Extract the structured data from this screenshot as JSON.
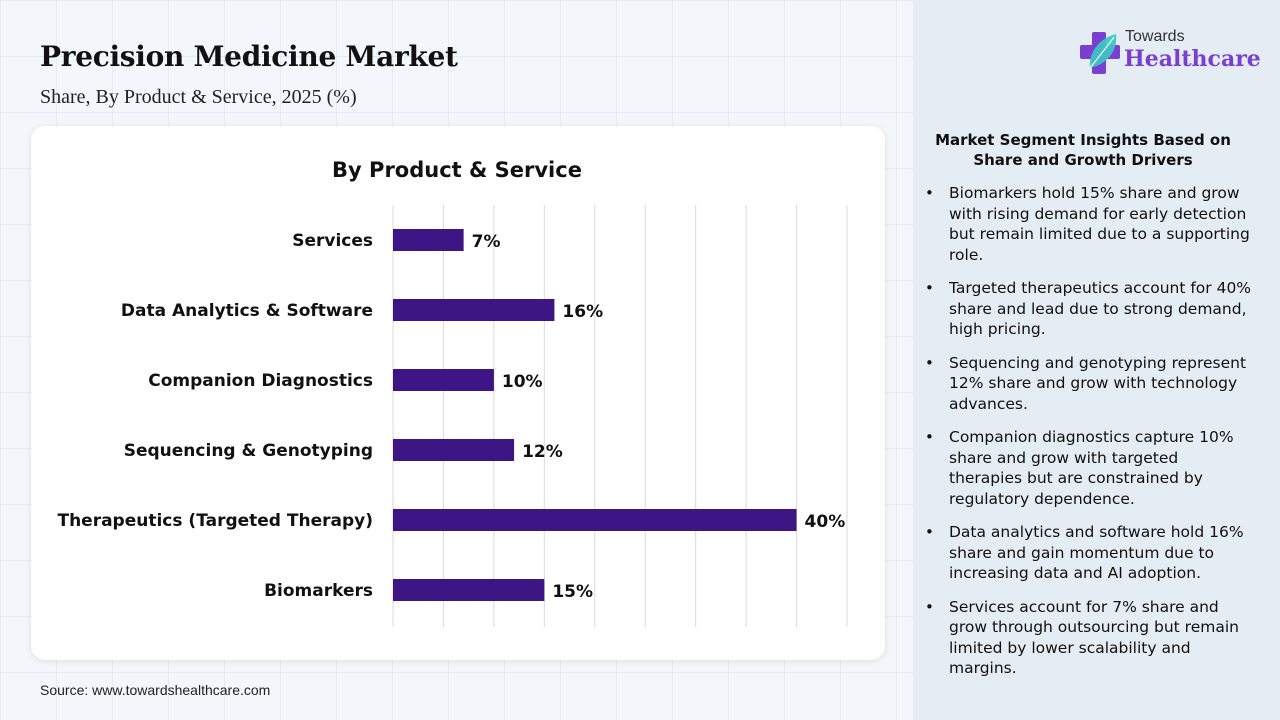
{
  "header": {
    "title": "Precision Medicine Market",
    "subtitle": "Share, By Product & Service, 2025 (%)"
  },
  "logo": {
    "line1": "Towards",
    "line2": "Healthcare",
    "icon": "cross-leaf-icon"
  },
  "chart_data": {
    "type": "bar",
    "orientation": "horizontal",
    "title": "By Product & Service",
    "categories": [
      "Services",
      "Data Analytics & Software",
      "Companion Diagnostics",
      "Sequencing & Genotyping",
      "Therapeutics (Targeted Therapy)",
      "Biomarkers"
    ],
    "values": [
      7,
      16,
      10,
      12,
      40,
      15
    ],
    "value_labels": [
      "7%",
      "16%",
      "10%",
      "12%",
      "40%",
      "15%"
    ],
    "unit": "%",
    "xlabel": "",
    "ylabel": "",
    "xlim": [
      0,
      45
    ],
    "grid": true,
    "grid_step": 5,
    "bar_color": "#3d1585",
    "legend": "none"
  },
  "insights": {
    "title": "Market Segment Insights Based on Share and Growth Drivers",
    "items": [
      "Biomarkers hold 15% share and grow with rising demand for early detection but remain limited due to a supporting role.",
      "Targeted therapeutics account for 40% share and lead due to strong demand, high pricing.",
      "Sequencing and genotyping represent 12% share and grow with technology advances.",
      "Companion diagnostics capture 10% share and grow with targeted therapies but are constrained by regulatory dependence.",
      "Data analytics and software hold 16% share and gain momentum due to increasing data and AI adoption.",
      "Services account for 7% share and grow through outsourcing but remain limited by lower scalability and margins."
    ],
    "bullet": "•"
  },
  "footer": {
    "source": "Source: www.towardshealthcare.com"
  }
}
